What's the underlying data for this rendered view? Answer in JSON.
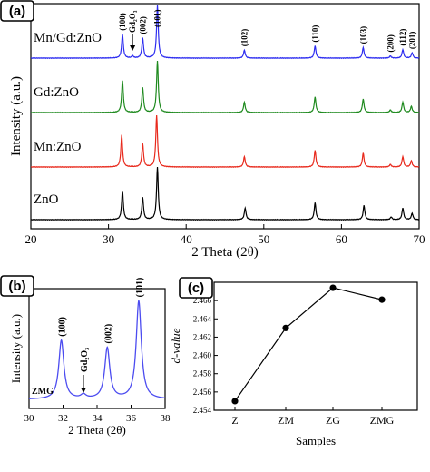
{
  "figure": {
    "panels": {
      "a": "(a)",
      "b": "(b)",
      "c": "(c)"
    }
  },
  "chart_data": [
    {
      "panel": "(a)",
      "type": "line",
      "xlabel": "2 Theta (2θ)",
      "ylabel": "Intensity (a.u.)",
      "xlim": [
        20,
        70
      ],
      "xticks": [
        20,
        30,
        40,
        50,
        60,
        70
      ],
      "stacked": true,
      "series": [
        {
          "label": "ZnO",
          "color": "#000000",
          "peaks": [
            [
              31.8,
              0.55
            ],
            [
              34.4,
              0.42
            ],
            [
              36.3,
              1.0
            ],
            [
              47.6,
              0.22
            ],
            [
              56.6,
              0.32
            ],
            [
              62.9,
              0.27
            ],
            [
              66.4,
              0.05
            ],
            [
              67.9,
              0.22
            ],
            [
              69.1,
              0.12
            ]
          ]
        },
        {
          "label": "Mn:ZnO",
          "color": "#e8291c",
          "peaks": [
            [
              31.7,
              0.62
            ],
            [
              34.4,
              0.45
            ],
            [
              36.2,
              1.0
            ],
            [
              47.5,
              0.2
            ],
            [
              56.6,
              0.32
            ],
            [
              62.8,
              0.27
            ],
            [
              66.3,
              0.05
            ],
            [
              67.9,
              0.2
            ],
            [
              69.0,
              0.12
            ]
          ]
        },
        {
          "label": "Gd:ZnO",
          "color": "#1f8a1f",
          "peaks": [
            [
              31.8,
              0.62
            ],
            [
              34.4,
              0.48
            ],
            [
              36.3,
              1.0
            ],
            [
              47.5,
              0.2
            ],
            [
              56.6,
              0.3
            ],
            [
              62.8,
              0.26
            ],
            [
              66.3,
              0.05
            ],
            [
              67.9,
              0.2
            ],
            [
              69.0,
              0.12
            ]
          ]
        },
        {
          "label": "Mn/Gd:ZnO",
          "color": "#2c2cf0",
          "peaks": [
            [
              31.8,
              0.45
            ],
            [
              33.1,
              0.04
            ],
            [
              34.4,
              0.38
            ],
            [
              36.3,
              1.0
            ],
            [
              47.5,
              0.15
            ],
            [
              56.6,
              0.23
            ],
            [
              62.8,
              0.2
            ],
            [
              66.3,
              0.04
            ],
            [
              67.9,
              0.16
            ],
            [
              69.1,
              0.1
            ]
          ]
        }
      ],
      "annotations": [
        {
          "text": "(100)",
          "x": 31.8
        },
        {
          "text": "Gd₂O₃",
          "x": 33.1,
          "arrow": true
        },
        {
          "text": "(002)",
          "x": 34.4
        },
        {
          "text": "(101)",
          "x": 36.3
        },
        {
          "text": "(102)",
          "x": 47.5
        },
        {
          "text": "(110)",
          "x": 56.6
        },
        {
          "text": "(103)",
          "x": 62.8
        },
        {
          "text": "(200)",
          "x": 66.3
        },
        {
          "text": "(112)",
          "x": 67.9
        },
        {
          "text": "(201)",
          "x": 69.1
        }
      ]
    },
    {
      "panel": "(b)",
      "type": "line",
      "xlabel": "2 Theta (2θ)",
      "ylabel": "Intensity (a.u.)",
      "xlim": [
        30,
        38
      ],
      "xticks": [
        30,
        32,
        34,
        36,
        38
      ],
      "series": [
        {
          "label": "ZMG",
          "color": "#4c4cf0",
          "peaks": [
            [
              31.9,
              0.6
            ],
            [
              33.2,
              0.04
            ],
            [
              34.6,
              0.52
            ],
            [
              36.45,
              1.0
            ]
          ]
        }
      ],
      "annotations": [
        {
          "text": "(100)",
          "x": 31.9
        },
        {
          "text": "Gd₂O₃",
          "x": 33.2,
          "arrow": true
        },
        {
          "text": "(002)",
          "x": 34.6
        },
        {
          "text": "(101)",
          "x": 36.45
        }
      ]
    },
    {
      "panel": "(c)",
      "type": "line",
      "xlabel": "Samples",
      "ylabel": "d-value",
      "categories": [
        "Z",
        "ZM",
        "ZG",
        "ZMG"
      ],
      "values": [
        2.455,
        2.463,
        2.4674,
        2.4661
      ],
      "ylim": [
        2.454,
        2.468
      ],
      "yticks": [
        "2.454",
        "2.456",
        "2.458",
        "2.460",
        "2.462",
        "2.464",
        "2.466",
        "2.468"
      ],
      "marker": "circle",
      "color": "#000000"
    }
  ]
}
